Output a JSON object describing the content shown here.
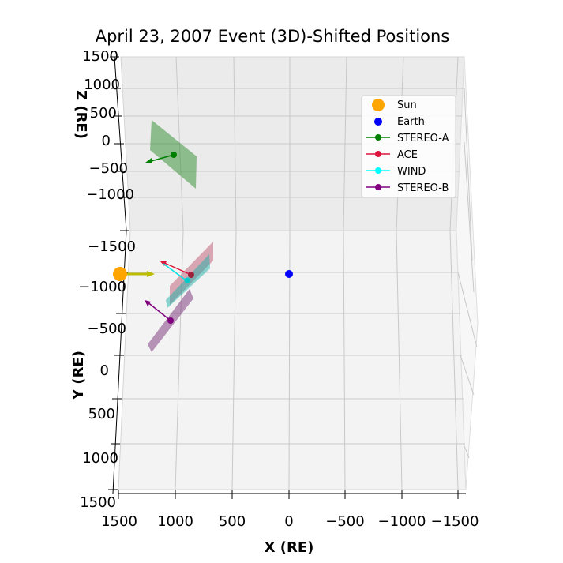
{
  "chart_data": {
    "type": "scatter",
    "title": "April 23, 2007 Event (3D)-Shifted Positions",
    "xlabel": "X (RE)",
    "ylabel": "Y (RE)",
    "zlabel": "Z (RE)",
    "xlim": [
      1500,
      -1500
    ],
    "ylim": [
      -1500,
      1500
    ],
    "zlim": [
      -1500,
      1500
    ],
    "x_ticks": [
      "1500",
      "1000",
      "500",
      "0",
      "−500",
      "−1000",
      "−1500"
    ],
    "y_ticks": [
      "−1500",
      "−1000",
      "−500",
      "0",
      "500",
      "1000",
      "1500"
    ],
    "z_ticks": [
      "1500",
      "1000",
      "500",
      "0",
      "−500",
      "−1000"
    ],
    "grid": true,
    "legend_position": "top-right",
    "legend": [
      {
        "name": "Sun",
        "color": "#ffa500",
        "marker": "big-dot"
      },
      {
        "name": "Earth",
        "color": "#0000ff",
        "marker": "dot"
      },
      {
        "name": "STEREO-A",
        "color": "#008000",
        "marker": "line-dot"
      },
      {
        "name": "ACE",
        "color": "#dc143c",
        "marker": "line-dot"
      },
      {
        "name": "WIND",
        "color": "#00ffff",
        "marker": "line-dot"
      },
      {
        "name": "STEREO-B",
        "color": "#800080",
        "marker": "line-dot"
      }
    ],
    "points": [
      {
        "name": "Sun",
        "x": 1500,
        "y": -1000,
        "color": "#ffa500"
      },
      {
        "name": "Earth",
        "x": 0,
        "y": -1000,
        "color": "#0000ff"
      },
      {
        "name": "STEREO-A",
        "x": 1000,
        "z": 0,
        "color": "#008000"
      },
      {
        "name": "ACE",
        "x": 870,
        "y": -1000,
        "color": "#dc143c"
      },
      {
        "name": "WIND",
        "x": 880,
        "y": -970,
        "color": "#00ffff"
      },
      {
        "name": "STEREO-B",
        "x": 1050,
        "y": -450,
        "color": "#800080"
      }
    ]
  }
}
